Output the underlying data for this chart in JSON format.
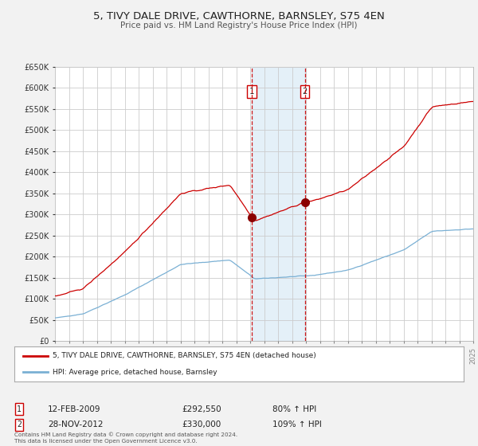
{
  "title": "5, TIVY DALE DRIVE, CAWTHORNE, BARNSLEY, S75 4EN",
  "subtitle": "Price paid vs. HM Land Registry's House Price Index (HPI)",
  "bg_color": "#f2f2f2",
  "plot_bg_color": "#ffffff",
  "grid_color": "#cccccc",
  "red_line_color": "#cc0000",
  "blue_line_color": "#7ab0d4",
  "marker1_date": 2009.12,
  "marker1_value": 292550,
  "marker2_date": 2012.92,
  "marker2_value": 330000,
  "vline1_date": 2009.12,
  "vline2_date": 2012.92,
  "shade_start": 2009.12,
  "shade_end": 2012.92,
  "ylim_min": 0,
  "ylim_max": 650000,
  "xlim_min": 1995,
  "xlim_max": 2025,
  "legend_red": "5, TIVY DALE DRIVE, CAWTHORNE, BARNSLEY, S75 4EN (detached house)",
  "legend_blue": "HPI: Average price, detached house, Barnsley",
  "label1_num": "1",
  "label1_date": "12-FEB-2009",
  "label1_price": "£292,550",
  "label1_hpi": "80% ↑ HPI",
  "label2_num": "2",
  "label2_date": "28-NOV-2012",
  "label2_price": "£330,000",
  "label2_hpi": "109% ↑ HPI",
  "footer1": "Contains HM Land Registry data © Crown copyright and database right 2024.",
  "footer2": "This data is licensed under the Open Government Licence v3.0."
}
